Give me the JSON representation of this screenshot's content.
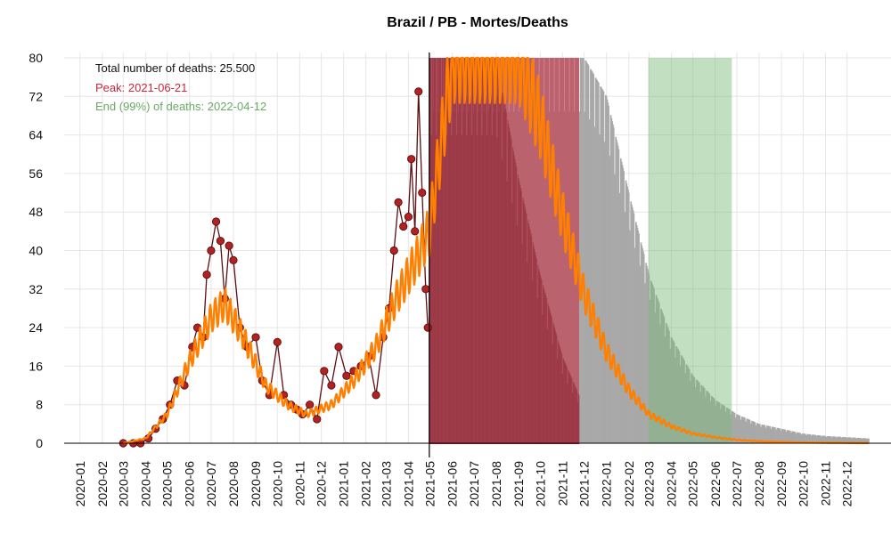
{
  "chart_data": {
    "type": "line",
    "title": "Brazil / PB - Mortes/Deaths",
    "xlabel": "",
    "ylabel": "",
    "ylim": [
      0,
      80
    ],
    "y_ticks": [
      0,
      8,
      16,
      24,
      32,
      40,
      48,
      56,
      64,
      72,
      80
    ],
    "x_range": [
      "2019-12-10",
      "2023-01-31"
    ],
    "x_tick_labels": [
      "2020-01",
      "2020-02",
      "2020-03",
      "2020-04",
      "2020-05",
      "2020-06",
      "2020-07",
      "2020-08",
      "2020-09",
      "2020-10",
      "2020-11",
      "2020-12",
      "2021-01",
      "2021-02",
      "2021-03",
      "2021-04",
      "2021-05",
      "2021-06",
      "2021-07",
      "2021-08",
      "2021-09",
      "2021-10",
      "2021-11",
      "2021-12",
      "2022-01",
      "2022-02",
      "2022-03",
      "2022-04",
      "2022-05",
      "2022-06",
      "2022-07",
      "2022-08",
      "2022-09",
      "2022-10",
      "2022-11",
      "2022-12"
    ],
    "grid": true,
    "today_line": "2021-04-30",
    "annotations": {
      "total": "Total number of deaths: 25.500",
      "peak": "Peak: 2021-06-21",
      "end": "End (99%) of deaths: 2022-04-12"
    },
    "bands": [
      {
        "name": "peak",
        "from": "2021-04-30",
        "to": "2021-11-24",
        "color": "#c8283c"
      },
      {
        "name": "end",
        "from": "2022-02-28",
        "to": "2022-06-24",
        "color": "#7bb776"
      }
    ],
    "observed_series": {
      "color": "#b22222",
      "x": [
        "2020-03-01",
        "2020-03-15",
        "2020-03-25",
        "2020-04-05",
        "2020-04-15",
        "2020-04-25",
        "2020-05-05",
        "2020-05-15",
        "2020-05-25",
        "2020-06-05",
        "2020-06-12",
        "2020-06-20",
        "2020-06-25",
        "2020-07-01",
        "2020-07-08",
        "2020-07-14",
        "2020-07-20",
        "2020-07-26",
        "2020-08-01",
        "2020-08-10",
        "2020-08-20",
        "2020-09-01",
        "2020-09-10",
        "2020-09-20",
        "2020-10-01",
        "2020-10-10",
        "2020-10-20",
        "2020-10-28",
        "2020-11-05",
        "2020-11-15",
        "2020-11-25",
        "2020-12-05",
        "2020-12-15",
        "2020-12-25",
        "2021-01-05",
        "2021-01-15",
        "2021-01-25",
        "2021-02-05",
        "2021-02-15",
        "2021-02-25",
        "2021-03-05",
        "2021-03-12",
        "2021-03-18",
        "2021-03-25",
        "2021-04-01",
        "2021-04-05",
        "2021-04-10",
        "2021-04-15",
        "2021-04-20",
        "2021-04-25",
        "2021-04-28"
      ],
      "y": [
        0,
        0,
        0,
        1,
        3,
        5,
        8,
        13,
        12,
        20,
        24,
        22,
        35,
        40,
        46,
        42,
        30,
        41,
        38,
        24,
        20,
        22,
        13,
        10,
        21,
        10,
        8,
        7,
        6,
        8,
        5,
        15,
        12,
        20,
        14,
        15,
        16,
        18,
        10,
        22,
        28,
        40,
        50,
        45,
        47,
        59,
        44,
        73,
        52,
        32,
        24
      ]
    },
    "model_fit": {
      "color": "#ff7f00",
      "x": [
        "2020-03-01",
        "2020-04-01",
        "2020-05-01",
        "2020-06-01",
        "2020-07-01",
        "2020-07-20",
        "2020-08-15",
        "2020-09-15",
        "2020-10-15",
        "2020-11-10",
        "2020-12-15",
        "2021-01-15",
        "2021-02-15",
        "2021-03-15",
        "2021-04-15",
        "2021-04-30",
        "2021-06-01",
        "2021-07-01",
        "2021-08-01",
        "2021-09-01",
        "2021-10-01",
        "2021-11-01",
        "2021-12-01",
        "2022-01-01",
        "2022-02-01",
        "2022-03-01",
        "2022-04-01",
        "2022-05-01",
        "2022-06-01",
        "2022-07-01",
        "2022-08-01",
        "2022-09-01",
        "2022-10-01",
        "2022-11-01",
        "2022-12-01",
        "2022-12-31"
      ],
      "y": [
        0,
        1,
        6,
        17,
        26,
        29,
        22,
        12,
        8,
        6,
        8,
        13,
        20,
        30,
        39,
        44,
        80,
        80,
        80,
        80,
        67,
        47,
        31,
        19,
        11,
        6,
        3.5,
        2,
        1.2,
        0.7,
        0.4,
        0.25,
        0.15,
        0.1,
        0.06,
        0.04
      ]
    },
    "forecast_upper": {
      "color": "#a9a9a9",
      "x": [
        "2021-04-30",
        "2021-09-01",
        "2021-11-01",
        "2021-12-01",
        "2022-01-01",
        "2022-02-01",
        "2022-03-01",
        "2022-04-01",
        "2022-05-01",
        "2022-06-01",
        "2022-07-01",
        "2022-08-01",
        "2022-09-01",
        "2022-10-01",
        "2022-11-01",
        "2022-12-31"
      ],
      "y": [
        80,
        80,
        80,
        80,
        72,
        52,
        35,
        22,
        14,
        9,
        6,
        4,
        3,
        2,
        1.5,
        1
      ]
    },
    "forecast_lower": {
      "x": [
        "2021-04-30",
        "2021-08-01",
        "2021-09-01",
        "2021-10-01",
        "2021-11-01",
        "2021-11-24"
      ],
      "y": [
        80,
        80,
        55,
        35,
        18,
        10
      ]
    }
  }
}
